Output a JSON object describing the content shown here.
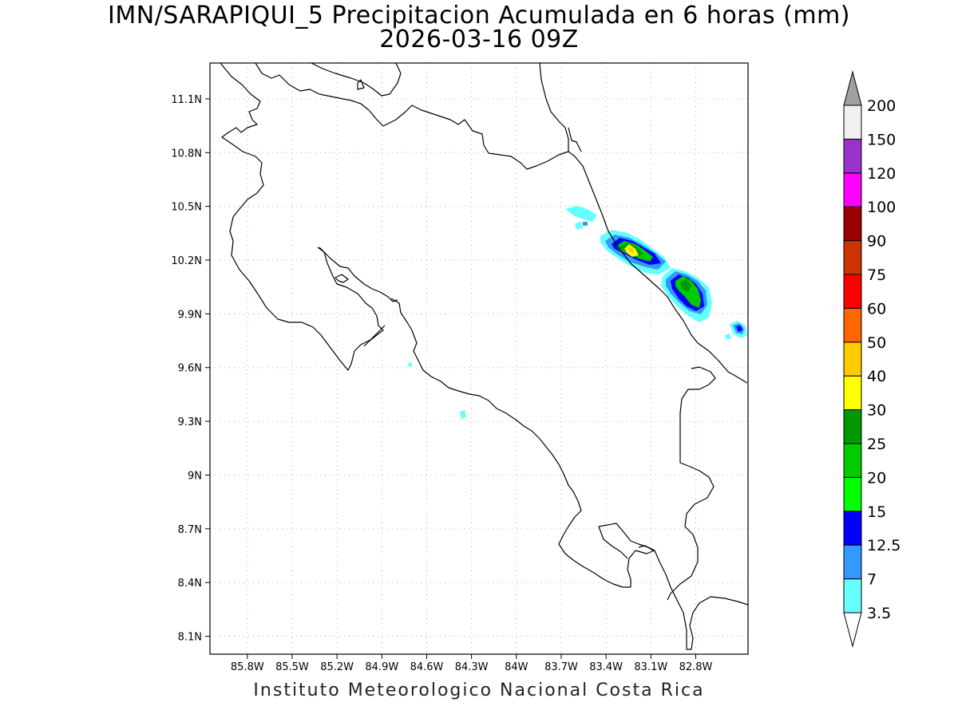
{
  "title": {
    "line1": "IMN/SARAPIQUI_5 Precipitacion Acumulada en 6 horas (mm)",
    "line2": "2026-03-16 09Z"
  },
  "credit": "Instituto Meteorologico Nacional Costa Rica",
  "map": {
    "lon_range": [
      -86.05,
      -82.45
    ],
    "lat_range": [
      8.0,
      11.3
    ],
    "lon_ticks": [
      {
        "value": -85.8,
        "label": "85.8W"
      },
      {
        "value": -85.5,
        "label": "85.5W"
      },
      {
        "value": -85.2,
        "label": "85.2W"
      },
      {
        "value": -84.9,
        "label": "84.9W"
      },
      {
        "value": -84.6,
        "label": "84.6W"
      },
      {
        "value": -84.3,
        "label": "84.3W"
      },
      {
        "value": -84.0,
        "label": "84W"
      },
      {
        "value": -83.7,
        "label": "83.7W"
      },
      {
        "value": -83.4,
        "label": "83.4W"
      },
      {
        "value": -83.1,
        "label": "83.1W"
      },
      {
        "value": -82.8,
        "label": "82.8W"
      }
    ],
    "lat_ticks": [
      {
        "value": 11.1,
        "label": "11.1N"
      },
      {
        "value": 10.8,
        "label": "10.8N"
      },
      {
        "value": 10.5,
        "label": "10.5N"
      },
      {
        "value": 10.2,
        "label": "10.2N"
      },
      {
        "value": 9.9,
        "label": "9.9N"
      },
      {
        "value": 9.6,
        "label": "9.6N"
      },
      {
        "value": 9.3,
        "label": "9.3N"
      },
      {
        "value": 9.0,
        "label": "9N"
      },
      {
        "value": 8.7,
        "label": "8.7N"
      },
      {
        "value": 8.4,
        "label": "8.4N"
      },
      {
        "value": 8.1,
        "label": "8.1N"
      }
    ],
    "grid": true
  },
  "colorbar": {
    "unit": "mm",
    "bins": [
      {
        "label": "3.5",
        "color": "#66ffff"
      },
      {
        "label": "7",
        "color": "#3399ff"
      },
      {
        "label": "12.5",
        "color": "#0000ff"
      },
      {
        "label": "15",
        "color": "#00ff00"
      },
      {
        "label": "20",
        "color": "#00cc00"
      },
      {
        "label": "25",
        "color": "#009900"
      },
      {
        "label": "30",
        "color": "#ffff00"
      },
      {
        "label": "40",
        "color": "#ffcc00"
      },
      {
        "label": "50",
        "color": "#ff6600"
      },
      {
        "label": "60",
        "color": "#ff0000"
      },
      {
        "label": "75",
        "color": "#cc3300"
      },
      {
        "label": "90",
        "color": "#990000"
      },
      {
        "label": "100",
        "color": "#ff00ff"
      },
      {
        "label": "120",
        "color": "#9933cc"
      },
      {
        "label": "150",
        "color": "#f0f0f0"
      },
      {
        "label": "200",
        "color": "#a0a0a0"
      }
    ],
    "low_extend_color": "#ffffff"
  },
  "precip_cells": [
    {
      "lon": -83.6,
      "lat": 10.45,
      "max_mm": 7
    },
    {
      "lon": -83.25,
      "lat": 10.25,
      "max_mm": 40
    },
    {
      "lon": -82.95,
      "lat": 10.05,
      "max_mm": 25
    },
    {
      "lon": -82.55,
      "lat": 9.82,
      "max_mm": 12.5
    },
    {
      "lon": -84.35,
      "lat": 9.34,
      "max_mm": 3.5
    }
  ]
}
